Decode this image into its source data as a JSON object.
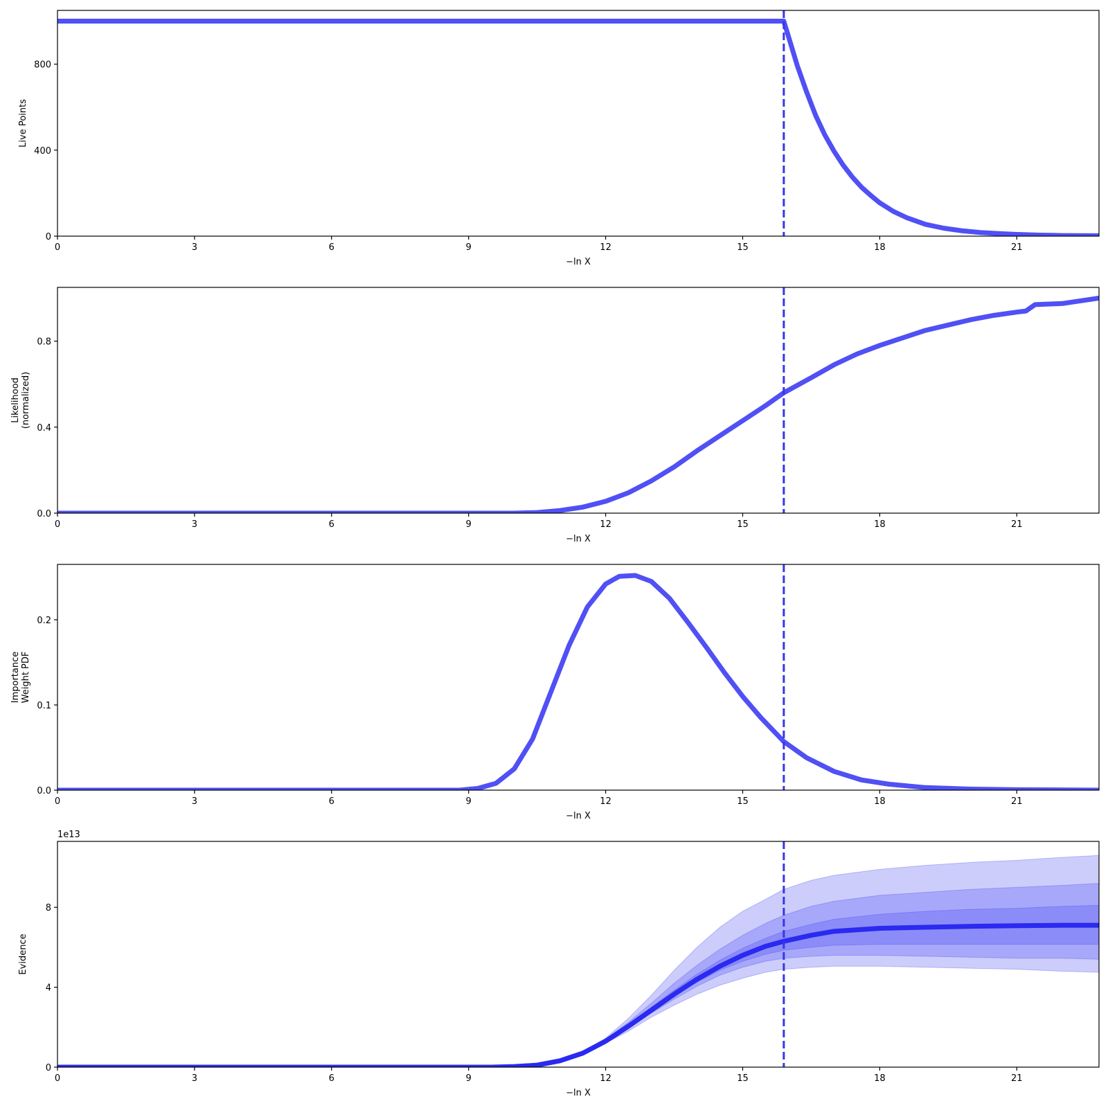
{
  "colors": {
    "line": "#5050f5",
    "evidence_line": "#2a2af0",
    "band": "#3d3df2",
    "vline": "#3535ee",
    "axis": "#000000"
  },
  "chart_data": [
    {
      "type": "line",
      "name": "live-points",
      "xlabel": "−ln X",
      "ylabel": [
        "Live Points"
      ],
      "xlim": [
        0,
        22.8
      ],
      "ylim": [
        0,
        1050
      ],
      "xticks": [
        0,
        3,
        6,
        9,
        12,
        15,
        18,
        21
      ],
      "yticks": [
        0,
        400,
        800
      ],
      "vline": 15.9,
      "x": [
        0,
        15.9,
        16.0,
        16.2,
        16.4,
        16.6,
        16.8,
        17.0,
        17.2,
        17.4,
        17.6,
        17.8,
        18.0,
        18.3,
        18.6,
        19.0,
        19.4,
        19.8,
        20.2,
        20.6,
        21.0,
        21.5,
        22.0,
        22.8
      ],
      "y": [
        1000,
        1000,
        930,
        790,
        670,
        560,
        470,
        395,
        330,
        275,
        228,
        190,
        155,
        115,
        85,
        55,
        37,
        25,
        17,
        12,
        8,
        5,
        3,
        2
      ]
    },
    {
      "type": "line",
      "name": "likelihood",
      "xlabel": "−ln X",
      "ylabel": [
        "Likelihood",
        "(normalized)"
      ],
      "xlim": [
        0,
        22.8
      ],
      "ylim": [
        0,
        1.05
      ],
      "xticks": [
        0,
        3,
        6,
        9,
        12,
        15,
        18,
        21
      ],
      "yticks": [
        0.0,
        0.4,
        0.8
      ],
      "vline": 15.9,
      "x": [
        0,
        10.0,
        10.5,
        11.0,
        11.5,
        12.0,
        12.5,
        13.0,
        13.5,
        14.0,
        14.5,
        15.0,
        15.5,
        15.9,
        16.5,
        17.0,
        17.5,
        18.0,
        18.5,
        19.0,
        19.5,
        20.0,
        20.5,
        21.0,
        21.2,
        21.4,
        22.0,
        22.8
      ],
      "y": [
        0,
        0.0,
        0.003,
        0.012,
        0.028,
        0.055,
        0.095,
        0.15,
        0.215,
        0.29,
        0.36,
        0.43,
        0.5,
        0.56,
        0.63,
        0.69,
        0.74,
        0.78,
        0.815,
        0.85,
        0.875,
        0.9,
        0.92,
        0.935,
        0.94,
        0.97,
        0.975,
        1.0
      ]
    },
    {
      "type": "line",
      "name": "importance-weight",
      "xlabel": "−ln X",
      "ylabel": [
        "Importance",
        "Weight PDF"
      ],
      "xlim": [
        0,
        22.8
      ],
      "ylim": [
        0,
        0.265
      ],
      "xticks": [
        0,
        3,
        6,
        9,
        12,
        15,
        18,
        21
      ],
      "yticks": [
        0.0,
        0.1,
        0.2
      ],
      "vline": 15.9,
      "x": [
        0,
        8.8,
        9.2,
        9.6,
        10.0,
        10.4,
        10.8,
        11.2,
        11.6,
        12.0,
        12.3,
        12.65,
        13.0,
        13.4,
        13.8,
        14.2,
        14.6,
        15.0,
        15.4,
        15.9,
        16.4,
        17.0,
        17.6,
        18.2,
        19.0,
        20.0,
        21.0,
        22.8
      ],
      "y": [
        0,
        0.0,
        0.002,
        0.008,
        0.025,
        0.06,
        0.115,
        0.17,
        0.215,
        0.242,
        0.251,
        0.252,
        0.245,
        0.225,
        0.197,
        0.168,
        0.138,
        0.11,
        0.085,
        0.057,
        0.038,
        0.022,
        0.012,
        0.007,
        0.003,
        0.0012,
        0.0005,
        0.0
      ]
    },
    {
      "type": "area",
      "name": "evidence",
      "xlabel": "−ln X",
      "ylabel": [
        "Evidence"
      ],
      "offset_text": "1e13",
      "xlim": [
        0,
        22.8
      ],
      "ylim": [
        0,
        11.3
      ],
      "xticks": [
        0,
        3,
        6,
        9,
        12,
        15,
        18,
        21
      ],
      "yticks": [
        0,
        4,
        8
      ],
      "vline": 15.9,
      "x": [
        0,
        9.5,
        10.0,
        10.5,
        11.0,
        11.5,
        12.0,
        12.5,
        13.0,
        13.5,
        14.0,
        14.5,
        15.0,
        15.5,
        15.9,
        16.5,
        17.0,
        18.0,
        19.0,
        20.0,
        21.0,
        22.0,
        22.8
      ],
      "y": [
        0,
        0.0,
        0.03,
        0.1,
        0.32,
        0.7,
        1.3,
        2.05,
        2.85,
        3.65,
        4.4,
        5.05,
        5.6,
        6.05,
        6.3,
        6.6,
        6.8,
        6.95,
        7.0,
        7.05,
        7.08,
        7.1,
        7.1
      ],
      "bands": [
        {
          "lower": [
            0,
            0.0,
            0.03,
            0.1,
            0.3,
            0.65,
            1.2,
            1.8,
            2.5,
            3.1,
            3.65,
            4.1,
            4.45,
            4.75,
            4.9,
            5.0,
            5.05,
            5.05,
            5.0,
            4.95,
            4.9,
            4.8,
            4.75
          ],
          "upper": [
            0,
            0.0,
            0.03,
            0.1,
            0.35,
            0.78,
            1.45,
            2.45,
            3.6,
            4.85,
            6.0,
            7.0,
            7.8,
            8.4,
            8.9,
            9.35,
            9.6,
            9.9,
            10.1,
            10.25,
            10.35,
            10.5,
            10.6
          ]
        },
        {
          "lower": [
            0,
            0.0,
            0.03,
            0.1,
            0.31,
            0.68,
            1.25,
            1.95,
            2.7,
            3.4,
            4.05,
            4.6,
            5.0,
            5.3,
            5.45,
            5.55,
            5.6,
            5.6,
            5.55,
            5.5,
            5.45,
            5.45,
            5.4
          ],
          "upper": [
            0,
            0.0,
            0.03,
            0.1,
            0.34,
            0.75,
            1.4,
            2.25,
            3.2,
            4.2,
            5.1,
            5.9,
            6.6,
            7.2,
            7.6,
            8.05,
            8.3,
            8.6,
            8.75,
            8.9,
            9.0,
            9.1,
            9.2
          ]
        },
        {
          "lower": [
            0,
            0.0,
            0.03,
            0.1,
            0.32,
            0.69,
            1.28,
            2.0,
            2.8,
            3.55,
            4.25,
            4.85,
            5.3,
            5.65,
            5.85,
            6.0,
            6.1,
            6.15,
            6.15,
            6.15,
            6.15,
            6.15,
            6.15
          ],
          "upper": [
            0,
            0.0,
            0.03,
            0.1,
            0.33,
            0.72,
            1.35,
            2.15,
            3.0,
            3.85,
            4.65,
            5.35,
            5.95,
            6.45,
            6.8,
            7.15,
            7.4,
            7.65,
            7.8,
            7.9,
            7.95,
            8.05,
            8.1
          ]
        }
      ]
    }
  ]
}
